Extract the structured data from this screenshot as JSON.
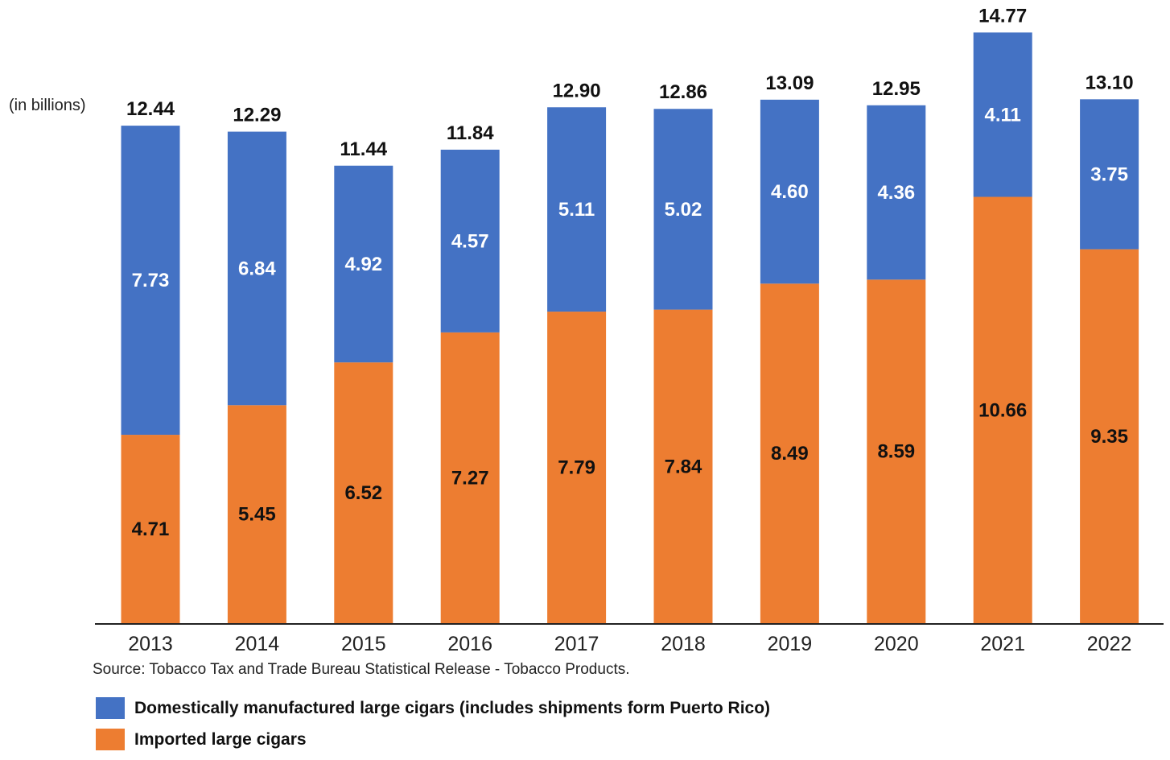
{
  "unit_label": "(in billions)",
  "source": "Source: Tobacco Tax and Trade Bureau Statistical Release - Tobacco Products.",
  "colors": {
    "domestic": "#4472C4",
    "imported": "#ED7D31"
  },
  "chart_data": {
    "type": "bar",
    "stacked": true,
    "title": "",
    "xlabel": "",
    "ylabel": "(in billions)",
    "ylim": [
      0,
      14.77
    ],
    "grid": false,
    "legend_position": "bottom",
    "categories": [
      "2013",
      "2014",
      "2015",
      "2016",
      "2017",
      "2018",
      "2019",
      "2020",
      "2021",
      "2022"
    ],
    "series": [
      {
        "name": "Imported large cigars",
        "color": "#ED7D31",
        "values": [
          4.71,
          5.45,
          6.52,
          7.27,
          7.79,
          7.84,
          8.49,
          8.59,
          10.66,
          9.35
        ]
      },
      {
        "name": "Domestically manufactured large cigars (includes shipments form Puerto Rico)",
        "color": "#4472C4",
        "values": [
          7.73,
          6.84,
          4.92,
          4.57,
          5.11,
          5.02,
          4.6,
          4.36,
          4.11,
          3.75
        ]
      }
    ],
    "totals": [
      12.44,
      12.29,
      11.44,
      11.84,
      12.9,
      12.86,
      13.09,
      12.95,
      14.77,
      13.1
    ],
    "series_labels": [
      [
        "4.71",
        "5.45",
        "6.52",
        "7.27",
        "7.79",
        "7.84",
        "8.49",
        "8.59",
        "10.66",
        "9.35"
      ],
      [
        "7.73",
        "6.84",
        "4.92",
        "4.57",
        "5.11",
        "5.02",
        "4.60",
        "4.36",
        "4.11",
        "3.75"
      ]
    ],
    "total_labels": [
      "12.44",
      "12.29",
      "11.44",
      "11.84",
      "12.90",
      "12.86",
      "13.09",
      "12.95",
      "14.77",
      "13.10"
    ]
  },
  "legend": [
    {
      "label": "Domestically manufactured large cigars (includes shipments form Puerto Rico)",
      "color": "#4472C4"
    },
    {
      "label": "Imported large cigars",
      "color": "#ED7D31"
    }
  ]
}
